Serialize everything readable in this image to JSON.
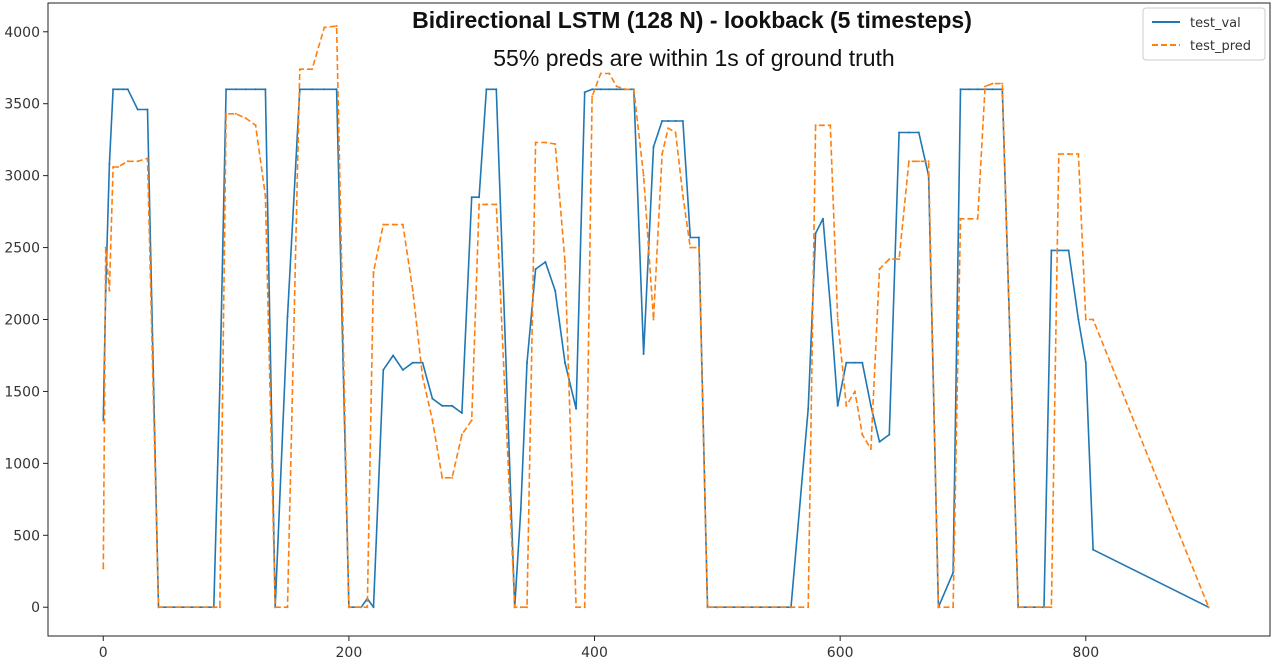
{
  "chart_data": {
    "type": "line",
    "title": "Bidirectional LSTM (128 N) - lookback (5 timesteps)",
    "subtitle": "55% preds are within 1s of ground truth",
    "xlabel": "",
    "ylabel": "",
    "xlim": [
      -45,
      950
    ],
    "ylim": [
      -200,
      4200
    ],
    "x_ticks": [
      0,
      200,
      400,
      600,
      800
    ],
    "y_ticks": [
      0,
      500,
      1000,
      1500,
      2000,
      2500,
      3000,
      3500,
      4000
    ],
    "grid": false,
    "legend_position": "top-right",
    "colors": {
      "test_val": "#1f77b4",
      "test_pred": "#ff7f0e"
    },
    "series": [
      {
        "name": "test_val",
        "style": "solid",
        "x": [
          0,
          2,
          5,
          8,
          12,
          16,
          20,
          28,
          36,
          45,
          90,
          95,
          100,
          108,
          116,
          124,
          132,
          140,
          150,
          160,
          170,
          180,
          190,
          200,
          210,
          215,
          220,
          228,
          236,
          244,
          252,
          260,
          268,
          276,
          284,
          292,
          300,
          306,
          312,
          320,
          335,
          340,
          345,
          352,
          360,
          368,
          376,
          385,
          392,
          398,
          405,
          412,
          418,
          425,
          432,
          440,
          448,
          455,
          460,
          466,
          472,
          478,
          485,
          492,
          500,
          560,
          574,
          580,
          586,
          592,
          598,
          605,
          612,
          618,
          625,
          632,
          640,
          648,
          656,
          664,
          672,
          680,
          692,
          698,
          705,
          712,
          718,
          724,
          732,
          745,
          766,
          772,
          778,
          786,
          794,
          800,
          806,
          900
        ],
        "values": [
          1300,
          2200,
          3080,
          3600,
          3600,
          3600,
          3600,
          3460,
          3460,
          0,
          0,
          1550,
          3600,
          3600,
          3600,
          3600,
          3600,
          0,
          2020,
          3600,
          3600,
          3600,
          3600,
          0,
          0,
          60,
          0,
          1650,
          1750,
          1650,
          1700,
          1700,
          1450,
          1400,
          1400,
          1350,
          2850,
          2850,
          3600,
          3600,
          0,
          680,
          1700,
          2350,
          2400,
          2200,
          1700,
          1380,
          3580,
          3600,
          3600,
          3600,
          3600,
          3600,
          3600,
          1760,
          3200,
          3380,
          3380,
          3380,
          3380,
          2570,
          2570,
          0,
          0,
          0,
          1380,
          2600,
          2700,
          2100,
          1400,
          1700,
          1700,
          1700,
          1400,
          1150,
          1200,
          3300,
          3300,
          3300,
          3000,
          0,
          240,
          3600,
          3600,
          3600,
          3600,
          3600,
          3600,
          0,
          0,
          2480,
          2480,
          2480,
          2000,
          1700,
          400,
          0
        ]
      },
      {
        "name": "test_pred",
        "style": "dashed",
        "x": [
          0,
          2,
          5,
          8,
          12,
          16,
          20,
          28,
          36,
          45,
          90,
          95,
          100,
          108,
          116,
          124,
          132,
          140,
          150,
          160,
          170,
          180,
          190,
          200,
          210,
          215,
          220,
          228,
          236,
          244,
          252,
          260,
          268,
          276,
          284,
          292,
          300,
          306,
          312,
          320,
          335,
          340,
          345,
          352,
          360,
          368,
          376,
          385,
          392,
          398,
          405,
          412,
          418,
          425,
          432,
          440,
          448,
          455,
          460,
          466,
          472,
          478,
          485,
          492,
          500,
          560,
          574,
          580,
          586,
          592,
          598,
          605,
          612,
          618,
          625,
          632,
          640,
          648,
          656,
          664,
          672,
          680,
          692,
          698,
          705,
          712,
          718,
          724,
          732,
          745,
          766,
          772,
          778,
          786,
          794,
          800,
          806,
          900
        ],
        "values": [
          270,
          2500,
          2200,
          3060,
          3060,
          3080,
          3100,
          3100,
          3120,
          0,
          0,
          0,
          3430,
          3430,
          3400,
          3350,
          2860,
          0,
          0,
          3740,
          3740,
          4030,
          4040,
          0,
          0,
          0,
          2330,
          2660,
          2660,
          2660,
          2200,
          1600,
          1300,
          900,
          900,
          1200,
          1300,
          2800,
          2800,
          2800,
          0,
          0,
          0,
          3230,
          3230,
          3220,
          2400,
          0,
          0,
          3550,
          3710,
          3710,
          3620,
          3600,
          3600,
          3000,
          2000,
          3150,
          3330,
          3300,
          2860,
          2500,
          2500,
          0,
          0,
          0,
          0,
          3350,
          3350,
          3350,
          2000,
          1400,
          1500,
          1200,
          1100,
          2350,
          2420,
          2420,
          3100,
          3100,
          3100,
          0,
          0,
          2700,
          2700,
          2700,
          3620,
          3640,
          3640,
          0,
          0,
          0,
          3150,
          3150,
          3150,
          2000,
          2000,
          0
        ]
      }
    ]
  }
}
